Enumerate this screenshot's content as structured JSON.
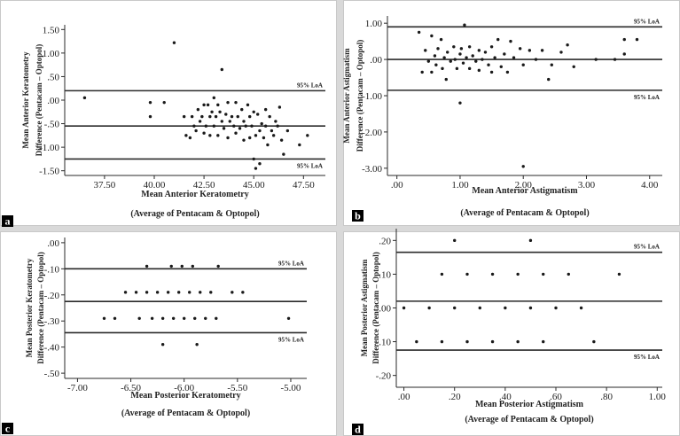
{
  "figure": {
    "separator_color": "#d9d9d9",
    "frame_color": "#c8c8c8",
    "line_color": "#2a2a2a",
    "point_color": "#1a1a1a",
    "label_bg_color": "#000000"
  },
  "chart_data": [
    {
      "id": "a",
      "panel_label": "a",
      "type": "scatter",
      "xlabel": "Mean Anterior Keratometry",
      "xlabel2": "(Average of Pentacam & Optopol)",
      "ylabel": "Mean Anterior Keratometry",
      "ylabel2": "Difference (Pentacam – Optopol)",
      "xlim": [
        35.5,
        48.6
      ],
      "ylim": [
        -1.6,
        1.6
      ],
      "xticks": [
        37.5,
        40.0,
        42.5,
        45.0,
        47.5
      ],
      "xtick_labels": [
        "37.50",
        "40.00",
        "42.50",
        "45.00",
        "47.50"
      ],
      "yticks": [
        1.5,
        1.0,
        0.5,
        0.0,
        -0.5,
        -1.0,
        -1.5
      ],
      "ytick_labels": [
        "1.50",
        "1.00",
        ".50",
        ".00",
        "-.50",
        "-1.00",
        "-1.50"
      ],
      "hlines": [
        {
          "y": 0.2,
          "label": "95% LoA"
        },
        {
          "y": -0.55,
          "label": ""
        },
        {
          "y": -1.25,
          "label": "95% LoA"
        }
      ],
      "points": [
        [
          36.5,
          0.05
        ],
        [
          39.8,
          -0.05
        ],
        [
          39.8,
          -0.35
        ],
        [
          40.5,
          -0.05
        ],
        [
          41.0,
          1.22
        ],
        [
          41.5,
          -0.35
        ],
        [
          41.6,
          -0.75
        ],
        [
          41.8,
          -0.8
        ],
        [
          41.9,
          -0.35
        ],
        [
          42.0,
          -0.55
        ],
        [
          42.1,
          -0.65
        ],
        [
          42.2,
          -0.2
        ],
        [
          42.3,
          -0.45
        ],
        [
          42.4,
          -0.35
        ],
        [
          42.5,
          -0.1
        ],
        [
          42.5,
          -0.7
        ],
        [
          42.6,
          -0.55
        ],
        [
          42.7,
          -0.1
        ],
        [
          42.8,
          -0.35
        ],
        [
          42.8,
          -0.75
        ],
        [
          42.9,
          -0.25
        ],
        [
          43.0,
          0.05
        ],
        [
          43.0,
          -0.55
        ],
        [
          43.1,
          -0.35
        ],
        [
          43.2,
          -0.1
        ],
        [
          43.2,
          -0.75
        ],
        [
          43.3,
          -0.25
        ],
        [
          43.4,
          0.65
        ],
        [
          43.4,
          -0.45
        ],
        [
          43.5,
          -0.6
        ],
        [
          43.6,
          -0.3
        ],
        [
          43.7,
          -0.05
        ],
        [
          43.7,
          -0.8
        ],
        [
          43.8,
          -0.45
        ],
        [
          43.9,
          -0.35
        ],
        [
          44.0,
          -0.55
        ],
        [
          44.1,
          -0.05
        ],
        [
          44.1,
          -0.7
        ],
        [
          44.2,
          -0.35
        ],
        [
          44.3,
          -0.6
        ],
        [
          44.4,
          -0.2
        ],
        [
          44.5,
          -0.45
        ],
        [
          44.5,
          -0.85
        ],
        [
          44.6,
          -0.55
        ],
        [
          44.7,
          -0.1
        ],
        [
          44.8,
          -0.35
        ],
        [
          44.8,
          -0.8
        ],
        [
          44.9,
          -0.55
        ],
        [
          45.0,
          -0.25
        ],
        [
          45.0,
          -1.25
        ],
        [
          45.1,
          -0.75
        ],
        [
          45.1,
          -1.45
        ],
        [
          45.2,
          -0.3
        ],
        [
          45.3,
          -0.65
        ],
        [
          45.3,
          -1.35
        ],
        [
          45.4,
          -0.5
        ],
        [
          45.5,
          -0.8
        ],
        [
          45.6,
          -0.2
        ],
        [
          45.6,
          -0.55
        ],
        [
          45.7,
          -0.95
        ],
        [
          45.8,
          -0.35
        ],
        [
          45.9,
          -0.65
        ],
        [
          46.0,
          -0.75
        ],
        [
          46.1,
          -0.45
        ],
        [
          46.2,
          -0.55
        ],
        [
          46.3,
          -0.15
        ],
        [
          46.4,
          -0.85
        ],
        [
          46.5,
          -1.15
        ],
        [
          46.7,
          -0.65
        ],
        [
          47.3,
          -0.95
        ],
        [
          47.7,
          -0.75
        ]
      ]
    },
    {
      "id": "b",
      "panel_label": "b",
      "type": "scatter",
      "xlabel": "Mean Anterior Astigmatism",
      "xlabel2": "(Average of Pentacam & Optopol)",
      "ylabel": "Mean Anterior Astigmatism",
      "ylabel2": "Difference (Pentacam – Optopol)",
      "xlim": [
        -0.15,
        4.2
      ],
      "ylim": [
        -3.2,
        1.2
      ],
      "xticks": [
        0,
        1,
        2,
        3,
        4
      ],
      "xtick_labels": [
        ".00",
        "1.00",
        "2.00",
        "3.00",
        "4.00"
      ],
      "yticks": [
        1,
        0,
        -1,
        -2,
        -3
      ],
      "ytick_labels": [
        "1.00",
        ".00",
        "-1.00",
        "-2.00",
        "-3.00"
      ],
      "hlines": [
        {
          "y": 0.9,
          "label": "95% LoA"
        },
        {
          "y": 0.0,
          "label": ""
        },
        {
          "y": -0.85,
          "label": "95% LoA"
        }
      ],
      "points": [
        [
          0.35,
          0.75
        ],
        [
          0.4,
          -0.35
        ],
        [
          0.45,
          0.25
        ],
        [
          0.5,
          -0.05
        ],
        [
          0.55,
          0.65
        ],
        [
          0.55,
          -0.35
        ],
        [
          0.6,
          0.1
        ],
        [
          0.62,
          -0.15
        ],
        [
          0.65,
          0.3
        ],
        [
          0.7,
          0.55
        ],
        [
          0.72,
          -0.25
        ],
        [
          0.75,
          0.05
        ],
        [
          0.78,
          -0.55
        ],
        [
          0.8,
          0.2
        ],
        [
          0.85,
          -0.05
        ],
        [
          0.9,
          0.35
        ],
        [
          0.92,
          0.0
        ],
        [
          0.95,
          -0.25
        ],
        [
          1.0,
          0.15
        ],
        [
          1.0,
          -1.2
        ],
        [
          1.02,
          0.3
        ],
        [
          1.05,
          -0.1
        ],
        [
          1.07,
          0.95
        ],
        [
          1.1,
          0.05
        ],
        [
          1.15,
          0.35
        ],
        [
          1.15,
          -0.25
        ],
        [
          1.2,
          0.1
        ],
        [
          1.25,
          -0.05
        ],
        [
          1.3,
          0.25
        ],
        [
          1.3,
          -0.3
        ],
        [
          1.35,
          0.0
        ],
        [
          1.4,
          0.2
        ],
        [
          1.45,
          -0.15
        ],
        [
          1.5,
          0.35
        ],
        [
          1.5,
          -0.35
        ],
        [
          1.55,
          0.05
        ],
        [
          1.6,
          0.55
        ],
        [
          1.65,
          -0.2
        ],
        [
          1.7,
          0.15
        ],
        [
          1.75,
          -0.35
        ],
        [
          1.8,
          0.5
        ],
        [
          1.85,
          0.05
        ],
        [
          1.95,
          0.3
        ],
        [
          2.0,
          -0.15
        ],
        [
          2.0,
          -2.95
        ],
        [
          2.1,
          0.25
        ],
        [
          2.2,
          0.0
        ],
        [
          2.3,
          0.25
        ],
        [
          2.4,
          -0.55
        ],
        [
          2.45,
          -0.15
        ],
        [
          2.6,
          0.2
        ],
        [
          2.7,
          0.4
        ],
        [
          2.8,
          -0.2
        ],
        [
          3.15,
          0.0
        ],
        [
          3.45,
          0.0
        ],
        [
          3.6,
          0.15
        ],
        [
          3.6,
          0.55
        ],
        [
          3.8,
          0.55
        ]
      ]
    },
    {
      "id": "c",
      "panel_label": "c",
      "type": "scatter",
      "xlabel": "Mean Posterior Keratometry",
      "xlabel2": "(Average of Pentacam & Optopol)",
      "ylabel": "Mean Posterior Keratometry",
      "ylabel2": "Difference (Pentacam – Optopol)",
      "xlim": [
        -7.12,
        -4.85
      ],
      "ylim": [
        -0.52,
        0.02
      ],
      "xticks": [
        -7.0,
        -6.5,
        -6.0,
        -5.5,
        -5.0
      ],
      "xtick_labels": [
        "-7.00",
        "-6.50",
        "-6.00",
        "-5.50",
        "-5.00"
      ],
      "yticks": [
        0.0,
        -0.1,
        -0.2,
        -0.3,
        -0.4,
        -0.5
      ],
      "ytick_labels": [
        ".00",
        "-.10",
        "-.20",
        "-.30",
        "-.40",
        "-.50"
      ],
      "hlines": [
        {
          "y": -0.1,
          "label": "95% LoA"
        },
        {
          "y": -0.225,
          "label": ""
        },
        {
          "y": -0.345,
          "label": "95% LoA"
        }
      ],
      "points": [
        [
          -6.75,
          -0.29
        ],
        [
          -6.65,
          -0.29
        ],
        [
          -6.55,
          -0.19
        ],
        [
          -6.45,
          -0.19
        ],
        [
          -6.42,
          -0.29
        ],
        [
          -6.35,
          -0.19
        ],
        [
          -6.35,
          -0.09
        ],
        [
          -6.3,
          -0.29
        ],
        [
          -6.25,
          -0.19
        ],
        [
          -6.2,
          -0.29
        ],
        [
          -6.2,
          -0.39
        ],
        [
          -6.15,
          -0.19
        ],
        [
          -6.12,
          -0.09
        ],
        [
          -6.1,
          -0.29
        ],
        [
          -6.05,
          -0.19
        ],
        [
          -6.02,
          -0.09
        ],
        [
          -6.0,
          -0.29
        ],
        [
          -5.95,
          -0.19
        ],
        [
          -5.92,
          -0.09
        ],
        [
          -5.9,
          -0.29
        ],
        [
          -5.88,
          -0.39
        ],
        [
          -5.85,
          -0.19
        ],
        [
          -5.8,
          -0.29
        ],
        [
          -5.75,
          -0.19
        ],
        [
          -5.7,
          -0.29
        ],
        [
          -5.68,
          -0.09
        ],
        [
          -5.55,
          -0.19
        ],
        [
          -5.45,
          -0.19
        ],
        [
          -5.02,
          -0.29
        ]
      ]
    },
    {
      "id": "d",
      "panel_label": "d",
      "type": "scatter",
      "xlabel": "Mean Posterior Astigmatism",
      "xlabel2": "(Average of Pentacam & Optopol)",
      "ylabel": "Mean Posterior Astigmatism",
      "ylabel2": "Difference (Pentacam – Optopol)",
      "xlim": [
        -0.03,
        1.02
      ],
      "ylim": [
        -0.235,
        0.235
      ],
      "xticks": [
        0,
        0.2,
        0.4,
        0.6,
        0.8,
        1.0
      ],
      "xtick_labels": [
        ".00",
        ".20",
        ".40",
        ".60",
        ".80",
        "1.00"
      ],
      "yticks": [
        0.2,
        0.1,
        0.0,
        -0.1,
        -0.2
      ],
      "ytick_labels": [
        ".20",
        ".10",
        ".00",
        "-.10",
        "-.20"
      ],
      "hlines": [
        {
          "y": 0.165,
          "label": "95% LoA"
        },
        {
          "y": 0.02,
          "label": ""
        },
        {
          "y": -0.125,
          "label": "95% LoA"
        }
      ],
      "points": [
        [
          0.0,
          0.0
        ],
        [
          0.05,
          -0.1
        ],
        [
          0.1,
          0.0
        ],
        [
          0.15,
          0.1
        ],
        [
          0.15,
          -0.1
        ],
        [
          0.2,
          0.2
        ],
        [
          0.2,
          0.0
        ],
        [
          0.25,
          0.1
        ],
        [
          0.25,
          -0.1
        ],
        [
          0.3,
          0.0
        ],
        [
          0.35,
          0.1
        ],
        [
          0.35,
          -0.1
        ],
        [
          0.4,
          0.0
        ],
        [
          0.45,
          0.1
        ],
        [
          0.45,
          -0.1
        ],
        [
          0.5,
          0.2
        ],
        [
          0.5,
          0.0
        ],
        [
          0.55,
          0.1
        ],
        [
          0.55,
          -0.1
        ],
        [
          0.6,
          0.0
        ],
        [
          0.65,
          0.1
        ],
        [
          0.7,
          0.0
        ],
        [
          0.75,
          -0.1
        ],
        [
          0.85,
          0.1
        ]
      ]
    }
  ]
}
